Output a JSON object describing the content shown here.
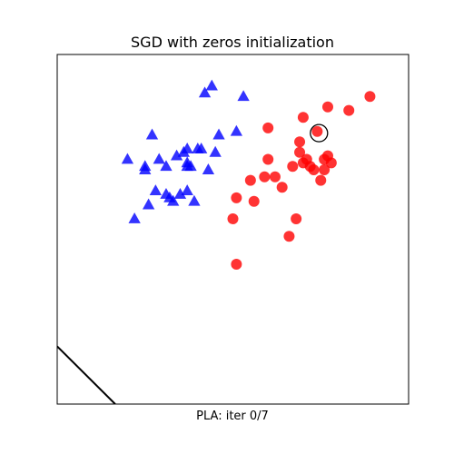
{
  "chart_data": {
    "type": "scatter",
    "title": "SGD with zeros initialization",
    "xlabel": "PLA: iter 0/7",
    "ylabel": "",
    "xlim": [
      0,
      1
    ],
    "ylim": [
      0,
      1
    ],
    "xticks": [],
    "yticks": [],
    "grid": false,
    "series": [
      {
        "marker": "triangle",
        "color": "#0000ff",
        "points": [
          [
            0.44,
            0.91
          ],
          [
            0.42,
            0.89
          ],
          [
            0.53,
            0.88
          ],
          [
            0.46,
            0.77
          ],
          [
            0.51,
            0.78
          ],
          [
            0.27,
            0.77
          ],
          [
            0.37,
            0.73
          ],
          [
            0.4,
            0.73
          ],
          [
            0.41,
            0.73
          ],
          [
            0.36,
            0.72
          ],
          [
            0.34,
            0.71
          ],
          [
            0.45,
            0.72
          ],
          [
            0.2,
            0.7
          ],
          [
            0.29,
            0.7
          ],
          [
            0.37,
            0.69
          ],
          [
            0.37,
            0.68
          ],
          [
            0.25,
            0.68
          ],
          [
            0.31,
            0.68
          ],
          [
            0.38,
            0.68
          ],
          [
            0.25,
            0.67
          ],
          [
            0.43,
            0.67
          ],
          [
            0.28,
            0.61
          ],
          [
            0.37,
            0.61
          ],
          [
            0.35,
            0.6
          ],
          [
            0.31,
            0.6
          ],
          [
            0.32,
            0.59
          ],
          [
            0.39,
            0.58
          ],
          [
            0.33,
            0.58
          ],
          [
            0.26,
            0.57
          ],
          [
            0.22,
            0.53
          ]
        ]
      },
      {
        "marker": "circle",
        "color": "#ff0000",
        "points": [
          [
            0.89,
            0.88
          ],
          [
            0.77,
            0.85
          ],
          [
            0.83,
            0.84
          ],
          [
            0.7,
            0.82
          ],
          [
            0.6,
            0.79
          ],
          [
            0.74,
            0.78
          ],
          [
            0.69,
            0.75
          ],
          [
            0.77,
            0.71
          ],
          [
            0.69,
            0.72
          ],
          [
            0.71,
            0.7
          ],
          [
            0.6,
            0.7
          ],
          [
            0.76,
            0.7
          ],
          [
            0.78,
            0.69
          ],
          [
            0.7,
            0.69
          ],
          [
            0.67,
            0.68
          ],
          [
            0.72,
            0.68
          ],
          [
            0.73,
            0.67
          ],
          [
            0.76,
            0.67
          ],
          [
            0.62,
            0.65
          ],
          [
            0.59,
            0.65
          ],
          [
            0.55,
            0.64
          ],
          [
            0.75,
            0.64
          ],
          [
            0.64,
            0.62
          ],
          [
            0.51,
            0.59
          ],
          [
            0.56,
            0.58
          ],
          [
            0.5,
            0.53
          ],
          [
            0.68,
            0.53
          ],
          [
            0.66,
            0.48
          ],
          [
            0.51,
            0.4
          ]
        ]
      }
    ],
    "highlight": {
      "x": 0.745,
      "y": 0.775,
      "color": "#000000"
    },
    "decision_line": {
      "color": "#000000",
      "points": [
        [
          0.0,
          0.165
        ],
        [
          0.165,
          0.0
        ]
      ]
    }
  }
}
